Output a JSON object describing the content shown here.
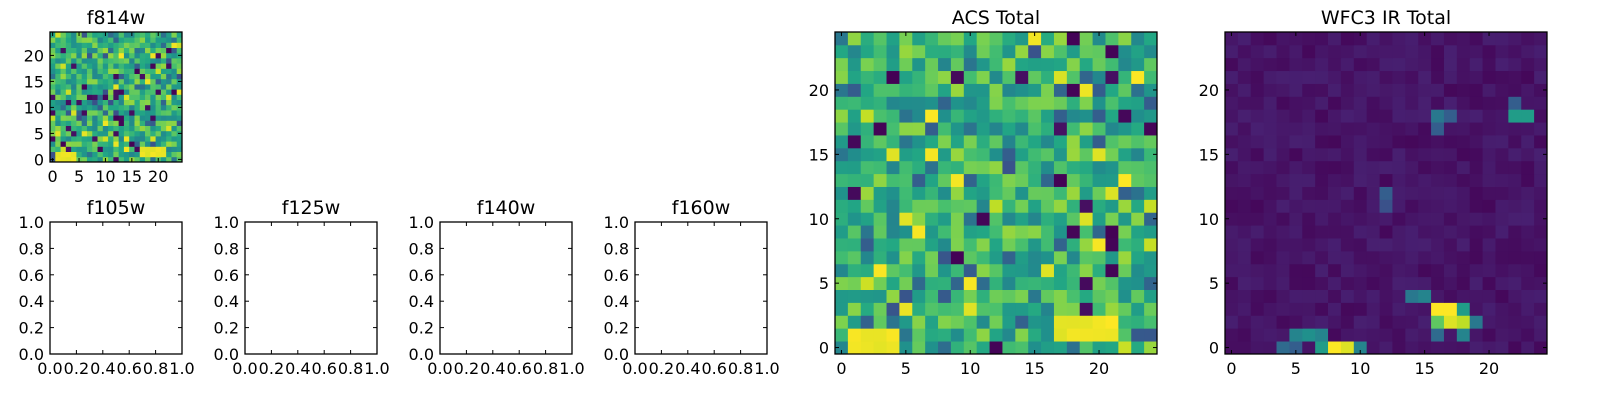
{
  "chart_data": [
    {
      "type": "heatmap",
      "title": "f814w",
      "xlabel": "",
      "ylabel": "",
      "xlim": [
        -0.5,
        24.5
      ],
      "ylim": [
        -0.5,
        24.5
      ],
      "xticks": [
        0,
        5,
        10,
        15,
        20
      ],
      "yticks": [
        0,
        5,
        10,
        15,
        20
      ],
      "colormap": "viridis",
      "size": [
        25,
        25
      ],
      "seed": 814,
      "bright_regions": [
        [
          1,
          0,
          4,
          1
        ],
        [
          17,
          1,
          21,
          2
        ]
      ]
    },
    {
      "type": "heatmap",
      "title": "ACS Total",
      "xlabel": "",
      "ylabel": "",
      "xlim": [
        -0.5,
        24.5
      ],
      "ylim": [
        -0.5,
        24.5
      ],
      "xticks": [
        0,
        5,
        10,
        15,
        20
      ],
      "yticks": [
        0,
        5,
        10,
        15,
        20
      ],
      "colormap": "viridis",
      "size": [
        25,
        25
      ],
      "seed": 2024,
      "bright_regions": [
        [
          1,
          0,
          4,
          1
        ],
        [
          17,
          1,
          21,
          2
        ]
      ]
    },
    {
      "type": "heatmap",
      "title": "WFC3 IR Total",
      "xlabel": "",
      "ylabel": "",
      "xlim": [
        -0.5,
        24.5
      ],
      "ylim": [
        -0.5,
        24.5
      ],
      "xticks": [
        0,
        5,
        10,
        15,
        20
      ],
      "yticks": [
        0,
        5,
        10,
        15,
        20
      ],
      "colormap": "viridis",
      "size": [
        25,
        25
      ],
      "background": 0.02,
      "sources": [
        {
          "x": 16,
          "y": 3,
          "value": 1.0
        },
        {
          "x": 17,
          "y": 3,
          "value": 1.0
        },
        {
          "x": 17,
          "y": 2,
          "value": 0.95
        },
        {
          "x": 18,
          "y": 2,
          "value": 0.9
        },
        {
          "x": 16,
          "y": 2,
          "value": 0.75
        },
        {
          "x": 15,
          "y": 4,
          "value": 0.45
        },
        {
          "x": 14,
          "y": 4,
          "value": 0.4
        },
        {
          "x": 18,
          "y": 3,
          "value": 0.55
        },
        {
          "x": 19,
          "y": 2,
          "value": 0.4
        },
        {
          "x": 18,
          "y": 1,
          "value": 0.45
        },
        {
          "x": 16,
          "y": 1,
          "value": 0.35
        },
        {
          "x": 8,
          "y": 0,
          "value": 1.0
        },
        {
          "x": 9,
          "y": 0,
          "value": 0.95
        },
        {
          "x": 7,
          "y": 0,
          "value": 0.55
        },
        {
          "x": 6,
          "y": 1,
          "value": 0.5
        },
        {
          "x": 5,
          "y": 1,
          "value": 0.45
        },
        {
          "x": 7,
          "y": 1,
          "value": 0.45
        },
        {
          "x": 4,
          "y": 0,
          "value": 0.35
        },
        {
          "x": 5,
          "y": 0,
          "value": 0.3
        },
        {
          "x": 10,
          "y": 0,
          "value": 0.45
        },
        {
          "x": 16,
          "y": 18,
          "value": 0.4
        },
        {
          "x": 16,
          "y": 17,
          "value": 0.3
        },
        {
          "x": 17,
          "y": 18,
          "value": 0.3
        },
        {
          "x": 22,
          "y": 18,
          "value": 0.55
        },
        {
          "x": 23,
          "y": 18,
          "value": 0.55
        },
        {
          "x": 22,
          "y": 19,
          "value": 0.3
        },
        {
          "x": 12,
          "y": 12,
          "value": 0.3
        },
        {
          "x": 12,
          "y": 11,
          "value": 0.25
        }
      ]
    },
    {
      "type": "empty",
      "title": "f105w",
      "xlim": [
        0,
        1
      ],
      "ylim": [
        0,
        1
      ],
      "xticks": [
        "0.0",
        "0.2",
        "0.4",
        "0.6",
        "0.8",
        "1.0"
      ],
      "yticks": [
        "0.0",
        "0.2",
        "0.4",
        "0.6",
        "0.8",
        "1.0"
      ]
    },
    {
      "type": "empty",
      "title": "f125w",
      "xlim": [
        0,
        1
      ],
      "ylim": [
        0,
        1
      ],
      "xticks": [
        "0.0",
        "0.2",
        "0.4",
        "0.6",
        "0.8",
        "1.0"
      ],
      "yticks": [
        "0.0",
        "0.2",
        "0.4",
        "0.6",
        "0.8",
        "1.0"
      ]
    },
    {
      "type": "empty",
      "title": "f140w",
      "xlim": [
        0,
        1
      ],
      "ylim": [
        0,
        1
      ],
      "xticks": [
        "0.0",
        "0.2",
        "0.4",
        "0.6",
        "0.8",
        "1.0"
      ],
      "yticks": [
        "0.0",
        "0.2",
        "0.4",
        "0.6",
        "0.8",
        "1.0"
      ]
    },
    {
      "type": "empty",
      "title": "f160w",
      "xlim": [
        0,
        1
      ],
      "ylim": [
        0,
        1
      ],
      "xticks": [
        "0.0",
        "0.2",
        "0.4",
        "0.6",
        "0.8",
        "1.0"
      ],
      "yticks": [
        "0.0",
        "0.2",
        "0.4",
        "0.6",
        "0.8",
        "1.0"
      ]
    }
  ]
}
